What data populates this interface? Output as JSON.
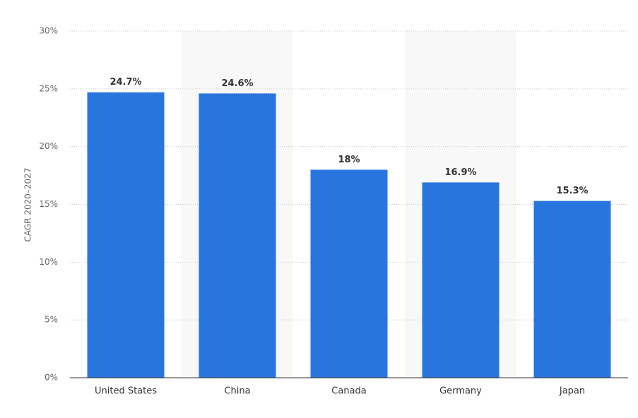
{
  "chart_data": {
    "type": "bar",
    "y_label": "CAGR 2020–2027",
    "categories": [
      "United States",
      "China",
      "Canada",
      "Germany",
      "Japan"
    ],
    "values": [
      24.7,
      24.6,
      18,
      16.9,
      15.3
    ],
    "value_labels": [
      "24.7%",
      "24.6%",
      "18%",
      "16.9%",
      "15.3%"
    ],
    "color": "#2876dd",
    "ylim": [
      0,
      30
    ],
    "yticks": [
      {
        "value": 0,
        "label": "0%"
      },
      {
        "value": 5,
        "label": "5%"
      },
      {
        "value": 10,
        "label": "10%"
      },
      {
        "value": 15,
        "label": "15%"
      },
      {
        "value": 20,
        "label": "20%"
      },
      {
        "value": 25,
        "label": "25%"
      },
      {
        "value": 30,
        "label": "30%"
      }
    ],
    "grid": true
  }
}
